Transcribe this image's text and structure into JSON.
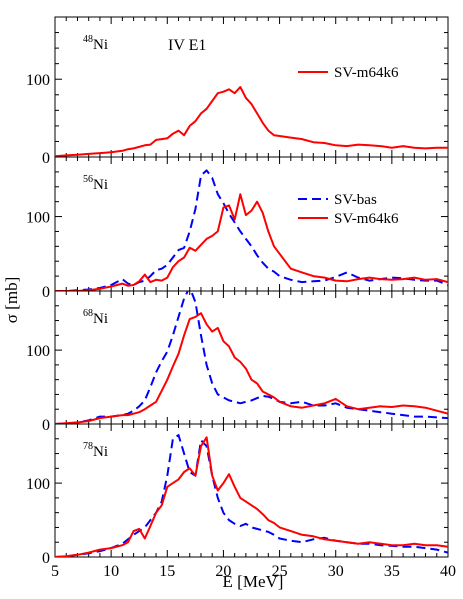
{
  "figure": {
    "xlabel": "E [MeV]",
    "ylabel": "σ [mb]",
    "xlim": [
      5,
      40
    ],
    "xticks": [
      5,
      10,
      15,
      20,
      25,
      30,
      35,
      40
    ],
    "colors": {
      "sv_bas": "#0000ff",
      "sv_m64k6": "#ff0000"
    }
  },
  "chart_data": [
    {
      "type": "line",
      "panel_label": "IV E1",
      "nucleus_mass": "48",
      "nucleus_symbol": "Ni",
      "ylim": [
        0,
        180
      ],
      "yticks": [
        0,
        100
      ],
      "legend": [
        "SV-m64k6"
      ],
      "legend_position": "upper-right",
      "x": [
        5,
        6,
        7,
        8,
        9,
        10,
        11,
        11.5,
        12,
        12.5,
        13,
        13.5,
        14,
        14.5,
        15,
        15.5,
        16,
        16.5,
        17,
        17.5,
        18,
        18.5,
        19,
        19.5,
        20,
        20.5,
        21,
        21.5,
        22,
        22.5,
        23,
        23.5,
        24,
        24.5,
        25,
        26,
        27,
        28,
        29,
        30,
        31,
        32,
        33,
        34,
        35,
        36,
        37,
        38,
        39,
        40
      ],
      "series": [
        {
          "name": "SV-m64k6",
          "style": "solid",
          "values": [
            1,
            2,
            3,
            4,
            5,
            6,
            8,
            10,
            11,
            13,
            15,
            16,
            22,
            23,
            24,
            30,
            34,
            28,
            40,
            46,
            56,
            62,
            72,
            82,
            84,
            87,
            82,
            90,
            76,
            68,
            56,
            44,
            34,
            28,
            27,
            25,
            23,
            19,
            18,
            15,
            14,
            16,
            15,
            14,
            12,
            14,
            12,
            11,
            12,
            12
          ]
        }
      ]
    },
    {
      "type": "line",
      "nucleus_mass": "56",
      "nucleus_symbol": "Ni",
      "ylim": [
        0,
        180
      ],
      "yticks": [
        0,
        100
      ],
      "legend": [
        "SV-bas",
        "SV-m64k6"
      ],
      "legend_position": "upper-right",
      "x": [
        5,
        6,
        7,
        8,
        9,
        10,
        11,
        11.5,
        12,
        12.5,
        13,
        13.5,
        14,
        14.5,
        15,
        15.5,
        16,
        16.5,
        17,
        17.5,
        18,
        18.5,
        19,
        19.5,
        20,
        20.5,
        21,
        21.5,
        22,
        22.5,
        23,
        23.5,
        24,
        24.5,
        25,
        26,
        27,
        28,
        29,
        30,
        31,
        32,
        33,
        34,
        35,
        36,
        37,
        38,
        39,
        40
      ],
      "series": [
        {
          "name": "SV-bas",
          "style": "dashed",
          "values": [
            0,
            0,
            1,
            2,
            4,
            8,
            16,
            10,
            8,
            12,
            14,
            20,
            28,
            30,
            35,
            45,
            55,
            58,
            80,
            110,
            155,
            162,
            152,
            130,
            118,
            104,
            92,
            80,
            70,
            60,
            48,
            38,
            30,
            26,
            20,
            15,
            12,
            13,
            14,
            19,
            25,
            18,
            14,
            16,
            18,
            17,
            15,
            14,
            14,
            8
          ]
        },
        {
          "name": "SV-m64k6",
          "style": "solid",
          "values": [
            0,
            0,
            0,
            1,
            3,
            6,
            10,
            7,
            8,
            13,
            22,
            12,
            15,
            14,
            18,
            32,
            40,
            45,
            58,
            54,
            62,
            70,
            74,
            80,
            112,
            115,
            96,
            130,
            102,
            108,
            120,
            105,
            80,
            60,
            50,
            30,
            25,
            20,
            18,
            14,
            13,
            16,
            18,
            16,
            15,
            16,
            18,
            15,
            16,
            12
          ]
        }
      ]
    },
    {
      "type": "line",
      "nucleus_mass": "68",
      "nucleus_symbol": "Ni",
      "ylim": [
        0,
        180
      ],
      "yticks": [
        0,
        100
      ],
      "x": [
        5,
        6,
        7,
        8,
        9,
        10,
        11,
        11.5,
        12,
        12.5,
        13,
        13.5,
        14,
        14.5,
        15,
        15.5,
        16,
        16.5,
        17,
        17.5,
        18,
        18.5,
        19,
        19.5,
        20,
        20.5,
        21,
        21.5,
        22,
        22.5,
        23,
        23.5,
        24,
        24.5,
        25,
        26,
        27,
        28,
        29,
        30,
        31,
        32,
        33,
        34,
        35,
        36,
        37,
        38,
        39,
        40
      ],
      "series": [
        {
          "name": "SV-bas",
          "style": "dashed",
          "values": [
            0,
            1,
            2,
            5,
            10,
            10,
            12,
            14,
            18,
            24,
            32,
            50,
            70,
            85,
            98,
            120,
            145,
            170,
            185,
            165,
            120,
            80,
            55,
            40,
            36,
            32,
            30,
            28,
            30,
            32,
            35,
            38,
            37,
            34,
            30,
            28,
            30,
            25,
            25,
            28,
            22,
            20,
            18,
            16,
            14,
            12,
            10,
            10,
            9,
            8
          ]
        },
        {
          "name": "SV-m64k6",
          "style": "solid",
          "values": [
            0,
            1,
            2,
            4,
            8,
            10,
            12,
            12,
            14,
            16,
            20,
            25,
            30,
            45,
            60,
            78,
            95,
            120,
            142,
            145,
            150,
            135,
            125,
            130,
            112,
            105,
            90,
            84,
            75,
            60,
            55,
            44,
            40,
            36,
            30,
            24,
            22,
            25,
            28,
            34,
            24,
            20,
            22,
            24,
            23,
            25,
            24,
            22,
            18,
            14
          ]
        }
      ]
    },
    {
      "type": "line",
      "nucleus_mass": "78",
      "nucleus_symbol": "Ni",
      "ylim": [
        0,
        180
      ],
      "yticks": [
        0,
        100
      ],
      "x": [
        5,
        6,
        7,
        8,
        9,
        10,
        11,
        11.5,
        12,
        12.5,
        13,
        13.5,
        14,
        14.5,
        15,
        15.5,
        16,
        16.5,
        17,
        17.5,
        18,
        18.5,
        19,
        19.5,
        20,
        20.5,
        21,
        21.5,
        22,
        22.5,
        23,
        23.5,
        24,
        24.5,
        25,
        26,
        27,
        28,
        29,
        30,
        31,
        32,
        33,
        34,
        35,
        36,
        37,
        38,
        39,
        40
      ],
      "series": [
        {
          "name": "SV-bas",
          "style": "dashed",
          "values": [
            0,
            1,
            3,
            5,
            8,
            12,
            18,
            24,
            30,
            35,
            40,
            50,
            60,
            75,
            110,
            160,
            165,
            140,
            115,
            110,
            158,
            150,
            110,
            80,
            60,
            50,
            45,
            42,
            45,
            40,
            38,
            36,
            34,
            30,
            25,
            22,
            20,
            24,
            26,
            22,
            20,
            18,
            18,
            16,
            15,
            14,
            14,
            12,
            10,
            6
          ]
        },
        {
          "name": "SV-m64k6",
          "style": "solid",
          "values": [
            0,
            1,
            3,
            6,
            10,
            12,
            16,
            20,
            35,
            38,
            25,
            42,
            60,
            70,
            95,
            100,
            105,
            115,
            120,
            110,
            150,
            162,
            110,
            90,
            100,
            112,
            95,
            80,
            75,
            70,
            65,
            58,
            50,
            46,
            40,
            35,
            30,
            28,
            24,
            22,
            20,
            18,
            20,
            18,
            16,
            16,
            18,
            16,
            16,
            14
          ]
        }
      ]
    }
  ]
}
